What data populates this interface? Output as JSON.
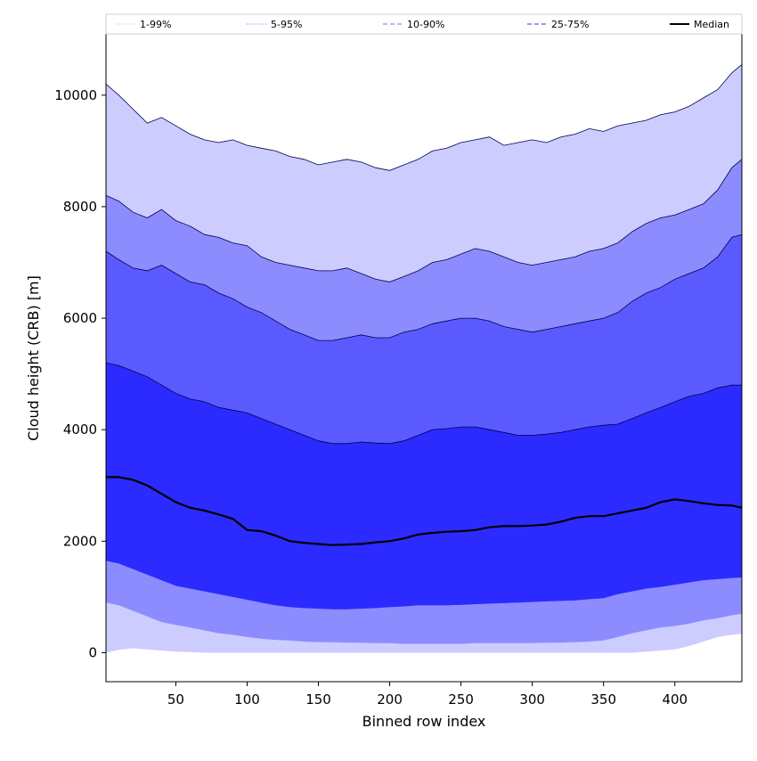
{
  "chart_data": {
    "type": "area",
    "title": "",
    "xlabel": "Binned row index",
    "ylabel": "Cloud height (CRB) [m]",
    "xlim": [
      1,
      447
    ],
    "ylim": [
      -520,
      11100
    ],
    "x_ticks": [
      50,
      100,
      150,
      200,
      250,
      300,
      350,
      400
    ],
    "y_ticks": [
      0,
      2000,
      4000,
      6000,
      8000,
      10000
    ],
    "grid": false,
    "legend_position": "top",
    "legend": [
      {
        "label": "1-99%",
        "style": "dotted",
        "color": "#c8c8ff"
      },
      {
        "label": "5-95%",
        "style": "dotted",
        "color": "#8c8cff"
      },
      {
        "label": "10-90%",
        "style": "dashed",
        "color": "#8c8cff"
      },
      {
        "label": "25-75%",
        "style": "dashed",
        "color": "#5a5aff"
      },
      {
        "label": "Median",
        "style": "solid",
        "color": "#000000"
      }
    ],
    "x": [
      1,
      10,
      20,
      30,
      40,
      50,
      60,
      70,
      80,
      90,
      100,
      110,
      120,
      130,
      140,
      150,
      160,
      170,
      180,
      190,
      200,
      210,
      220,
      230,
      240,
      250,
      260,
      270,
      280,
      290,
      300,
      310,
      320,
      330,
      340,
      350,
      360,
      370,
      380,
      390,
      400,
      410,
      420,
      430,
      440,
      447
    ],
    "bands": [
      {
        "name": "1-99%",
        "fill": "#ccccff",
        "lower": [
          0,
          50,
          80,
          60,
          40,
          20,
          10,
          0,
          0,
          0,
          0,
          0,
          0,
          0,
          0,
          0,
          0,
          0,
          0,
          0,
          0,
          0,
          0,
          0,
          0,
          0,
          0,
          0,
          0,
          0,
          0,
          0,
          0,
          0,
          0,
          0,
          0,
          0,
          20,
          40,
          60,
          120,
          200,
          280,
          320,
          340
        ],
        "upper": [
          10200,
          10000,
          9750,
          9500,
          9600,
          9450,
          9300,
          9200,
          9150,
          9200,
          9100,
          9050,
          9000,
          8900,
          8850,
          8750,
          8800,
          8850,
          8800,
          8700,
          8650,
          8750,
          8850,
          9000,
          9050,
          9150,
          9200,
          9250,
          9100,
          9150,
          9200,
          9150,
          9250,
          9300,
          9400,
          9350,
          9450,
          9500,
          9550,
          9650,
          9700,
          9800,
          9950,
          10100,
          10400,
          10550
        ]
      },
      {
        "name": "5-95%",
        "fill": "#8c8cff",
        "lower": [
          900,
          850,
          750,
          650,
          550,
          500,
          450,
          400,
          350,
          320,
          280,
          250,
          230,
          220,
          200,
          190,
          190,
          180,
          180,
          170,
          170,
          160,
          160,
          160,
          160,
          160,
          170,
          170,
          170,
          170,
          170,
          180,
          180,
          190,
          200,
          220,
          280,
          350,
          400,
          450,
          480,
          520,
          580,
          620,
          670,
          700
        ]
      },
      {
        "name": "10-90%",
        "fill": "#5a5aff",
        "lower": [
          1650,
          1600,
          1500,
          1400,
          1300,
          1200,
          1150,
          1100,
          1050,
          1000,
          950,
          900,
          850,
          820,
          800,
          790,
          780,
          780,
          790,
          800,
          820,
          830,
          850,
          850,
          850,
          860,
          870,
          880,
          890,
          900,
          910,
          920,
          930,
          940,
          960,
          980,
          1050,
          1100,
          1150,
          1180,
          1220,
          1260,
          1300,
          1320,
          1340,
          1350
        ]
      },
      {
        "name": "25-75%",
        "fill": "#2b2bff",
        "lower": [
          1650,
          1600,
          1500,
          1400,
          1300,
          1200,
          1150,
          1100,
          1050,
          1000,
          950,
          900,
          850,
          820,
          800,
          790,
          780,
          780,
          790,
          800,
          820,
          830,
          850,
          850,
          850,
          860,
          870,
          880,
          890,
          900,
          910,
          920,
          930,
          940,
          960,
          980,
          1050,
          1100,
          1150,
          1180,
          1220,
          1260,
          1300,
          1320,
          1340,
          1350
        ],
        "upper": [
          5200,
          5150,
          5050,
          4950,
          4800,
          4650,
          4550,
          4500,
          4400,
          4350,
          4300,
          4200,
          4100,
          4000,
          3900,
          3800,
          3750,
          3750,
          3780,
          3760,
          3750,
          3800,
          3900,
          4000,
          4020,
          4050,
          4050,
          4000,
          3950,
          3900,
          3900,
          3920,
          3950,
          4000,
          4050,
          4080,
          4100,
          4200,
          4300,
          4400,
          4500,
          4600,
          4650,
          4750,
          4800,
          4800
        ]
      }
    ],
    "median": [
      3150,
      3150,
      3100,
      3000,
      2850,
      2700,
      2600,
      2550,
      2480,
      2400,
      2200,
      2180,
      2100,
      2000,
      1970,
      1950,
      1930,
      1940,
      1950,
      1980,
      2000,
      2050,
      2120,
      2150,
      2170,
      2180,
      2200,
      2250,
      2270,
      2270,
      2280,
      2300,
      2350,
      2420,
      2450,
      2450,
      2500,
      2550,
      2600,
      2700,
      2750,
      2720,
      2680,
      2650,
      2640,
      2600
    ]
  }
}
